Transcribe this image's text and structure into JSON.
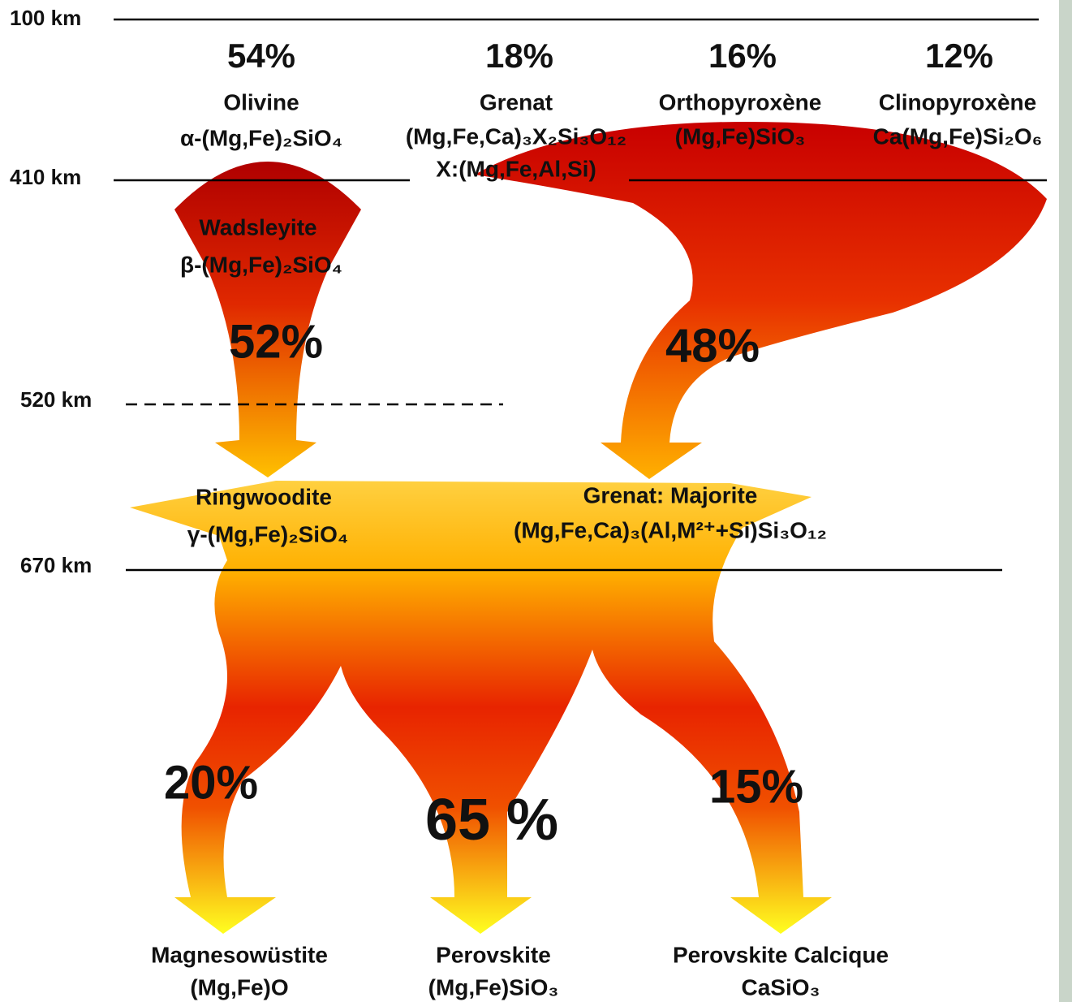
{
  "depths": [
    "100 km",
    "410 km",
    "520 km",
    "670 km"
  ],
  "upper_minerals": [
    {
      "percent": "54%",
      "name": "Olivine",
      "formula": "α-(Mg,Fe)₂SiO₄"
    },
    {
      "percent": "18%",
      "name": "Grenat",
      "formula": "(Mg,Fe,Ca)₃X₂Si₃O₁₂"
    },
    {
      "percent": "16%",
      "name": "Orthopyroxène",
      "formula": "(Mg,Fe)SiO₃"
    },
    {
      "percent": "12%",
      "name": "Clinopyroxène",
      "formula": "Ca(Mg,Fe)Si₂O₆"
    }
  ],
  "garnet_note": "X:(Mg,Fe,Al,Si)",
  "wadsleyite": {
    "name": "Wadsleyite",
    "formula": "β-(Mg,Fe)₂SiO₄"
  },
  "flows": [
    "52%",
    "48%"
  ],
  "ringwoodite": {
    "name": "Ringwoodite",
    "formula": "γ-(Mg,Fe)₂SiO₄"
  },
  "majorite": {
    "name": "Grenat: Majorite",
    "formula": "(Mg,Fe,Ca)₃(Al,M²⁺+Si)Si₃O₁₂"
  },
  "lower_minerals": [
    {
      "percent": "20%",
      "name": "Magnesowüstite",
      "formula": "(Mg,Fe)O"
    },
    {
      "percent": "65 %",
      "name": "Perovskite",
      "formula": "(Mg,Fe)SiO₃"
    },
    {
      "percent": "15%",
      "name": "Perovskite Calcique",
      "formula": "CaSiO₃"
    }
  ]
}
